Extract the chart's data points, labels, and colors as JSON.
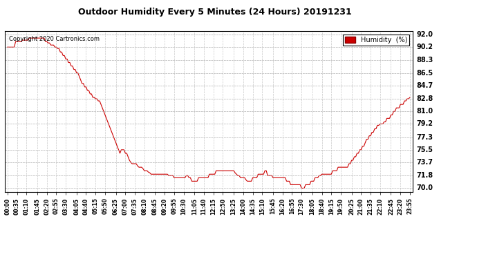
{
  "title": "Outdoor Humidity Every 5 Minutes (24 Hours) 20191231",
  "copyright": "Copyright 2020 Cartronics.com",
  "legend_label": "Humidity  (%)",
  "line_color": "#cc0000",
  "background_color": "#ffffff",
  "grid_color": "#aaaaaa",
  "yticks": [
    70.0,
    71.8,
    73.7,
    75.5,
    77.3,
    79.2,
    81.0,
    82.8,
    84.7,
    86.5,
    88.3,
    90.2,
    92.0
  ],
  "ylim": [
    69.5,
    92.5
  ],
  "humidity_values": [
    90.2,
    90.2,
    90.2,
    90.2,
    90.2,
    90.2,
    91.0,
    91.0,
    91.0,
    91.0,
    91.0,
    91.2,
    91.2,
    91.2,
    91.2,
    91.2,
    91.5,
    91.5,
    91.5,
    91.5,
    91.5,
    91.5,
    91.5,
    91.5,
    91.5,
    91.5,
    91.5,
    91.5,
    91.0,
    91.0,
    90.8,
    90.8,
    90.5,
    90.5,
    90.5,
    90.2,
    90.2,
    90.0,
    90.0,
    89.5,
    89.5,
    89.0,
    89.0,
    88.5,
    88.5,
    88.0,
    88.0,
    87.5,
    87.5,
    87.0,
    87.0,
    86.5,
    86.5,
    86.0,
    85.5,
    85.0,
    85.0,
    84.5,
    84.5,
    84.0,
    84.0,
    83.5,
    83.5,
    83.0,
    83.0,
    82.8,
    82.8,
    82.5,
    82.5,
    82.0,
    81.5,
    81.0,
    80.5,
    80.0,
    79.5,
    79.0,
    78.5,
    78.0,
    77.5,
    77.0,
    76.5,
    76.0,
    75.5,
    75.0,
    75.5,
    75.5,
    75.5,
    75.0,
    75.0,
    74.5,
    74.0,
    73.7,
    73.5,
    73.5,
    73.5,
    73.5,
    73.2,
    73.0,
    73.0,
    73.0,
    72.8,
    72.5,
    72.5,
    72.5,
    72.3,
    72.2,
    72.0,
    72.0,
    72.0,
    72.0,
    72.0,
    72.0,
    72.0,
    72.0,
    72.0,
    72.0,
    72.0,
    72.0,
    72.0,
    71.8,
    71.8,
    71.8,
    71.8,
    71.5,
    71.5,
    71.5,
    71.5,
    71.5,
    71.5,
    71.5,
    71.5,
    71.5,
    71.8,
    71.8,
    71.5,
    71.5,
    71.0,
    71.0,
    71.0,
    71.0,
    71.0,
    71.5,
    71.5,
    71.5,
    71.5,
    71.5,
    71.5,
    71.5,
    71.5,
    72.0,
    72.0,
    72.0,
    72.0,
    72.0,
    72.5,
    72.5,
    72.5,
    72.5,
    72.5,
    72.5,
    72.5,
    72.5,
    72.5,
    72.5,
    72.5,
    72.5,
    72.5,
    72.5,
    72.2,
    72.0,
    71.8,
    71.8,
    71.5,
    71.5,
    71.5,
    71.5,
    71.2,
    71.0,
    71.0,
    71.0,
    71.0,
    71.5,
    71.5,
    71.5,
    71.5,
    72.0,
    72.0,
    72.0,
    72.0,
    72.0,
    72.5,
    72.5,
    71.8,
    71.8,
    71.8,
    71.8,
    71.5,
    71.5,
    71.5,
    71.5,
    71.5,
    71.5,
    71.5,
    71.5,
    71.5,
    71.5,
    71.0,
    71.0,
    71.0,
    70.5,
    70.5,
    70.5,
    70.5,
    70.5,
    70.5,
    70.5,
    70.5,
    70.0,
    70.0,
    70.0,
    70.5,
    70.5,
    70.5,
    70.5,
    71.0,
    71.0,
    71.0,
    71.5,
    71.5,
    71.5,
    71.8,
    71.8,
    72.0,
    72.0,
    72.0,
    72.0,
    72.0,
    72.0,
    72.0,
    72.0,
    72.5,
    72.5,
    72.5,
    72.5,
    73.0,
    73.0,
    73.0,
    73.0,
    73.0,
    73.0,
    73.0,
    73.0,
    73.5,
    73.5,
    74.0,
    74.0,
    74.5,
    74.5,
    75.0,
    75.0,
    75.5,
    75.5,
    76.0,
    76.0,
    76.5,
    77.0,
    77.0,
    77.5,
    77.5,
    78.0,
    78.0,
    78.5,
    78.5,
    79.0,
    79.0,
    79.2,
    79.2,
    79.2,
    79.5,
    79.5,
    80.0,
    80.0,
    80.0,
    80.5,
    80.5,
    81.0,
    81.0,
    81.5,
    81.5,
    81.5,
    82.0,
    82.0,
    82.0,
    82.5,
    82.5,
    82.8,
    82.8,
    83.0
  ],
  "xtick_labels": [
    "00:00",
    "00:35",
    "01:10",
    "01:45",
    "02:20",
    "02:55",
    "03:30",
    "04:05",
    "04:40",
    "05:15",
    "05:50",
    "06:25",
    "07:00",
    "07:35",
    "08:10",
    "08:45",
    "09:20",
    "09:55",
    "10:30",
    "11:05",
    "11:40",
    "12:15",
    "12:50",
    "13:25",
    "14:00",
    "14:35",
    "15:10",
    "15:45",
    "16:20",
    "16:55",
    "17:30",
    "18:05",
    "18:40",
    "19:15",
    "19:50",
    "20:25",
    "21:00",
    "21:35",
    "22:10",
    "22:45",
    "23:20",
    "23:55"
  ]
}
